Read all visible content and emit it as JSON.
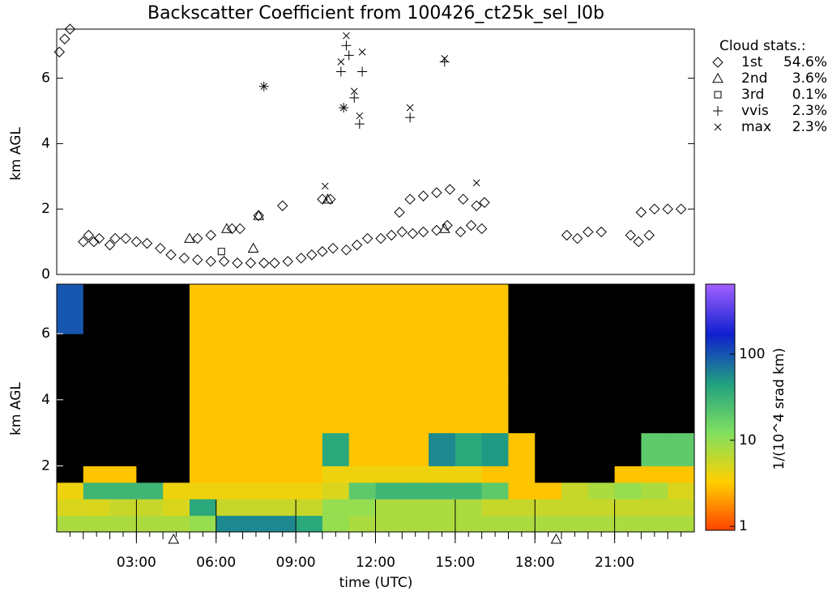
{
  "chart_data": [
    {
      "type": "scatter",
      "title": "Backscatter Coefficient from 100426_ct25k_sel_l0b",
      "y_label": "km AGL",
      "legend_title": "Cloud stats.:",
      "xlim": [
        0,
        24
      ],
      "ylim": [
        0,
        7.5
      ],
      "yticks": [
        0,
        2,
        4,
        6
      ],
      "series": [
        {
          "name": "1st",
          "stat": "54.6%",
          "marker": "diamond",
          "color": "#000000",
          "x": [
            1.0,
            1.2,
            1.4,
            1.6,
            2.0,
            2.2,
            2.6,
            3.0,
            3.4,
            3.9,
            4.3,
            4.8,
            5.3,
            5.8,
            6.3,
            6.8,
            7.3,
            7.8,
            8.2,
            8.7,
            9.2,
            9.6,
            10.0,
            10.4,
            10.9,
            11.3,
            11.7,
            12.2,
            12.6,
            13.0,
            13.4,
            13.8,
            14.3,
            14.7,
            15.2,
            15.6,
            16.0,
            12.9,
            13.3,
            13.8,
            14.3,
            14.8,
            15.3,
            15.8,
            16.1,
            10.0,
            10.3,
            7.6,
            8.5,
            5.3,
            5.8,
            6.6,
            6.9,
            19.2,
            19.6,
            20.0,
            20.5,
            21.6,
            21.9,
            22.3,
            22.0,
            22.5,
            23.0,
            23.5,
            0.1,
            0.3,
            0.5
          ],
          "y": [
            1.0,
            1.2,
            1.0,
            1.1,
            0.9,
            1.1,
            1.1,
            1.0,
            0.95,
            0.8,
            0.6,
            0.5,
            0.45,
            0.4,
            0.4,
            0.35,
            0.35,
            0.35,
            0.35,
            0.4,
            0.5,
            0.6,
            0.7,
            0.8,
            0.75,
            0.9,
            1.1,
            1.1,
            1.2,
            1.3,
            1.25,
            1.3,
            1.35,
            1.5,
            1.3,
            1.5,
            1.4,
            1.9,
            2.3,
            2.4,
            2.5,
            2.6,
            2.3,
            2.1,
            2.2,
            2.3,
            2.3,
            1.8,
            2.1,
            1.1,
            1.2,
            1.4,
            1.4,
            1.2,
            1.1,
            1.3,
            1.3,
            1.2,
            1.0,
            1.2,
            1.9,
            2.0,
            2.0,
            2.0,
            6.8,
            7.2,
            7.5
          ]
        },
        {
          "name": "2nd",
          "stat": "3.6%",
          "marker": "triangle",
          "color": "#000000",
          "x": [
            5.0,
            6.4,
            7.4,
            7.6,
            10.2,
            14.6
          ],
          "y": [
            1.1,
            1.4,
            0.8,
            1.8,
            2.3,
            1.4
          ]
        },
        {
          "name": "3rd",
          "stat": "0.1%",
          "marker": "square",
          "color": "#000000",
          "x": [
            6.2
          ],
          "y": [
            0.7
          ]
        },
        {
          "name": "vvis",
          "stat": "2.3%",
          "marker": "plus",
          "color": "#000000",
          "x": [
            7.8,
            10.7,
            11.0,
            11.2,
            11.5,
            10.8,
            11.4,
            13.3,
            14.6,
            10.9
          ],
          "y": [
            5.75,
            6.2,
            6.7,
            5.4,
            6.2,
            5.1,
            4.6,
            4.8,
            6.5,
            7.0
          ]
        },
        {
          "name": "max",
          "stat": "2.3%",
          "marker": "cross",
          "color": "#000000",
          "x": [
            7.8,
            10.7,
            10.9,
            11.2,
            11.5,
            10.8,
            11.4,
            13.3,
            14.6,
            10.1,
            15.8
          ],
          "y": [
            5.75,
            6.5,
            7.3,
            5.6,
            6.8,
            5.1,
            4.85,
            5.1,
            6.6,
            2.7,
            2.8
          ]
        }
      ]
    },
    {
      "type": "heatmap",
      "y_label": "km AGL",
      "x_label": "time (UTC)",
      "colorbar_label": "1/(10^4 srad km)",
      "xlim": [
        0,
        24
      ],
      "xticks": [
        {
          "value": 3,
          "label": "03:00"
        },
        {
          "value": 6,
          "label": "06:00"
        },
        {
          "value": 9,
          "label": "09:00"
        },
        {
          "value": 12,
          "label": "12:00"
        },
        {
          "value": 15,
          "label": "15:00"
        },
        {
          "value": 18,
          "label": "18:00"
        },
        {
          "value": 21,
          "label": "21:00"
        }
      ],
      "ylim": [
        0,
        7.5
      ],
      "yticks": [
        2,
        4,
        6
      ],
      "sun_markers": [
        4.4,
        18.8
      ],
      "time_edges": [
        0,
        1,
        2,
        3,
        4,
        5,
        6,
        7,
        8,
        9,
        10,
        11,
        12,
        13,
        14,
        15,
        16,
        17,
        18,
        19,
        20,
        21,
        22,
        23,
        24
      ],
      "height_edges": [
        0,
        0.5,
        1,
        1.5,
        2,
        3,
        4.5,
        6,
        7.5
      ],
      "clim": [
        0.9,
        650
      ],
      "log_color": true,
      "cticks": [
        1,
        10,
        100
      ],
      "null_color": "#000000",
      "colors": [
        "#ff4000",
        "#ffd000",
        "#80e060",
        "#20a080",
        "#1020d0",
        "#a060ff"
      ],
      "values": [
        [
          8,
          8,
          8,
          8,
          8,
          10,
          60,
          60,
          60,
          40,
          10,
          8,
          8,
          8,
          8,
          8,
          8,
          8,
          8,
          8,
          8,
          8,
          8,
          8
        ],
        [
          5,
          5,
          6,
          6,
          5,
          40,
          6,
          6,
          6,
          6,
          10,
          10,
          8,
          8,
          8,
          8,
          6,
          6,
          6,
          6,
          6,
          6,
          6,
          6
        ],
        [
          4,
          30,
          30,
          30,
          4,
          4,
          4,
          4,
          4,
          4,
          5,
          20,
          30,
          30,
          30,
          30,
          20,
          3,
          3,
          6,
          8,
          10,
          8,
          5
        ],
        [
          null,
          3,
          3,
          null,
          null,
          3,
          3,
          3,
          3,
          3,
          4,
          4,
          4,
          4,
          4,
          4,
          3,
          3,
          null,
          null,
          null,
          3,
          3,
          3
        ],
        [
          null,
          null,
          null,
          null,
          null,
          3,
          3,
          3,
          3,
          3,
          40,
          3,
          3,
          3,
          60,
          40,
          50,
          3,
          null,
          null,
          null,
          null,
          20,
          20
        ],
        [
          null,
          null,
          null,
          null,
          null,
          3,
          3,
          3,
          3,
          3,
          3,
          3,
          3,
          3,
          3,
          3,
          3,
          null,
          null,
          null,
          null,
          null,
          null,
          null
        ],
        [
          null,
          null,
          null,
          null,
          null,
          3,
          3,
          3,
          3,
          3,
          3,
          3,
          3,
          3,
          3,
          3,
          3,
          null,
          null,
          null,
          null,
          null,
          null,
          null
        ],
        [
          100,
          null,
          null,
          null,
          null,
          3,
          3,
          3,
          3,
          3,
          3,
          3,
          3,
          3,
          3,
          3,
          3,
          null,
          null,
          null,
          null,
          null,
          null,
          null
        ]
      ]
    }
  ]
}
